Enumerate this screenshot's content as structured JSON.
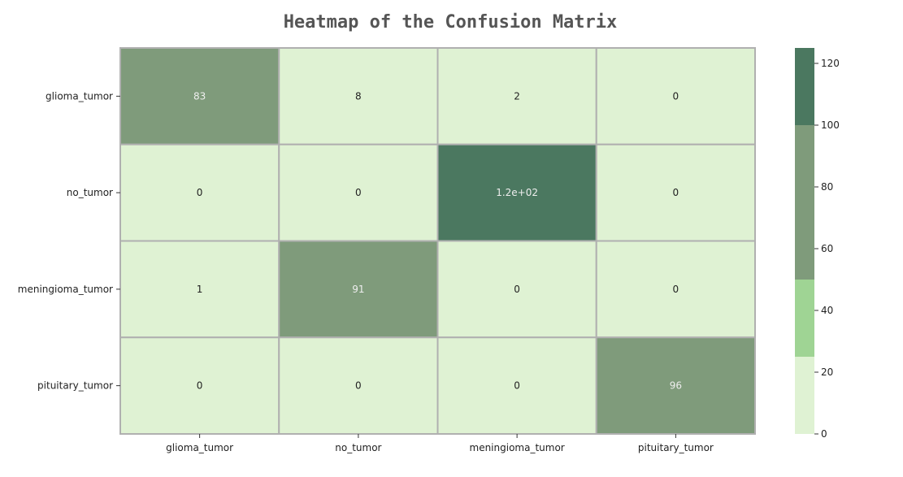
{
  "chart_data": {
    "type": "heatmap",
    "title": "Heatmap of the Confusion Matrix",
    "xlabel": "",
    "ylabel": "",
    "row_labels": [
      "glioma_tumor",
      "no_tumor",
      "meningioma_tumor",
      "pituitary_tumor"
    ],
    "col_labels": [
      "glioma_tumor",
      "no_tumor",
      "meningioma_tumor",
      "pituitary_tumor"
    ],
    "values": [
      [
        83,
        8,
        2,
        0
      ],
      [
        0,
        0,
        120,
        0
      ],
      [
        1,
        91,
        0,
        0
      ],
      [
        0,
        0,
        0,
        96
      ]
    ],
    "annotations": [
      [
        "83",
        "8",
        "2",
        "0"
      ],
      [
        "0",
        "0",
        "1.2e+02",
        "0"
      ],
      [
        "1",
        "91",
        "0",
        "0"
      ],
      [
        "0",
        "0",
        "0",
        "96"
      ]
    ],
    "colorbar": {
      "vmin": 0,
      "vmax": 125,
      "ticks": [
        "0",
        "20",
        "40",
        "60",
        "80",
        "100",
        "120"
      ],
      "tick_values": [
        0,
        20,
        40,
        60,
        80,
        100,
        120
      ],
      "bins": [
        {
          "from": 0,
          "to": 25,
          "color": "#dff2d3"
        },
        {
          "from": 25,
          "to": 50,
          "color": "#9fd494"
        },
        {
          "from": 50,
          "to": 75,
          "color": "#7f9b7b"
        },
        {
          "from": 75,
          "to": 100,
          "color": "#7f9b7b"
        },
        {
          "from": 100,
          "to": 125,
          "color": "#4b7860"
        }
      ]
    },
    "colors": {
      "grid_line": "#b0b0b0",
      "dark_text": "#222222",
      "light_text": "#eeeeee"
    },
    "grid": true,
    "legend": "colorbar-right"
  }
}
